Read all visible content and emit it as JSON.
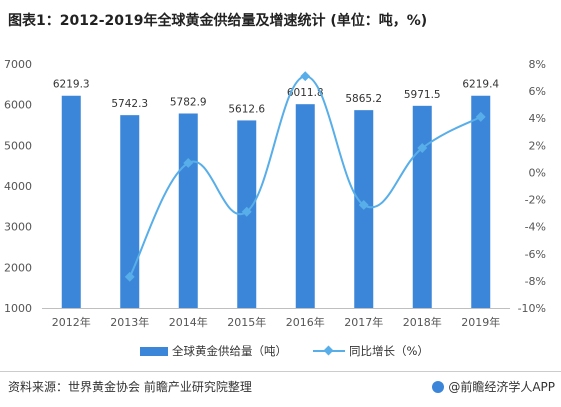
{
  "title": "图表1：2012-2019年全球黄金供给量及增速统计 (单位：吨，%)",
  "chart_data": {
    "type": "bar",
    "categories": [
      "2012年",
      "2013年",
      "2014年",
      "2015年",
      "2016年",
      "2017年",
      "2018年",
      "2019年"
    ],
    "series": [
      {
        "name": "全球黄金供给量（吨）",
        "type": "bar",
        "axis": "left",
        "values": [
          6219.3,
          5742.3,
          5782.9,
          5612.6,
          6011.8,
          5865.2,
          5971.5,
          6219.4
        ],
        "labels": [
          "6219.3",
          "5742.3",
          "5782.9",
          "5612.6",
          "6011.8",
          "5865.2",
          "5971.5",
          "6219.4"
        ],
        "color": "#3b86d9"
      },
      {
        "name": "同比增长（%）",
        "type": "line",
        "axis": "right",
        "values": [
          null,
          -7.7,
          0.7,
          -2.9,
          7.1,
          -2.4,
          1.8,
          4.1
        ],
        "color": "#58aee8"
      }
    ],
    "y_left": {
      "min": 1000,
      "max": 7000,
      "ticks": [
        "1000",
        "2000",
        "3000",
        "4000",
        "5000",
        "6000",
        "7000"
      ]
    },
    "y_right": {
      "min": -10,
      "max": 8,
      "ticks": [
        "-10%",
        "-8%",
        "-6%",
        "-4%",
        "-2%",
        "0%",
        "2%",
        "4%",
        "6%",
        "8%"
      ]
    },
    "grid": false,
    "legend_position": "bottom",
    "line_smooth": true
  },
  "footer": {
    "source": "资料来源：世界黄金协会 前瞻产业研究院整理",
    "brand": "@前瞻经济学人APP"
  }
}
